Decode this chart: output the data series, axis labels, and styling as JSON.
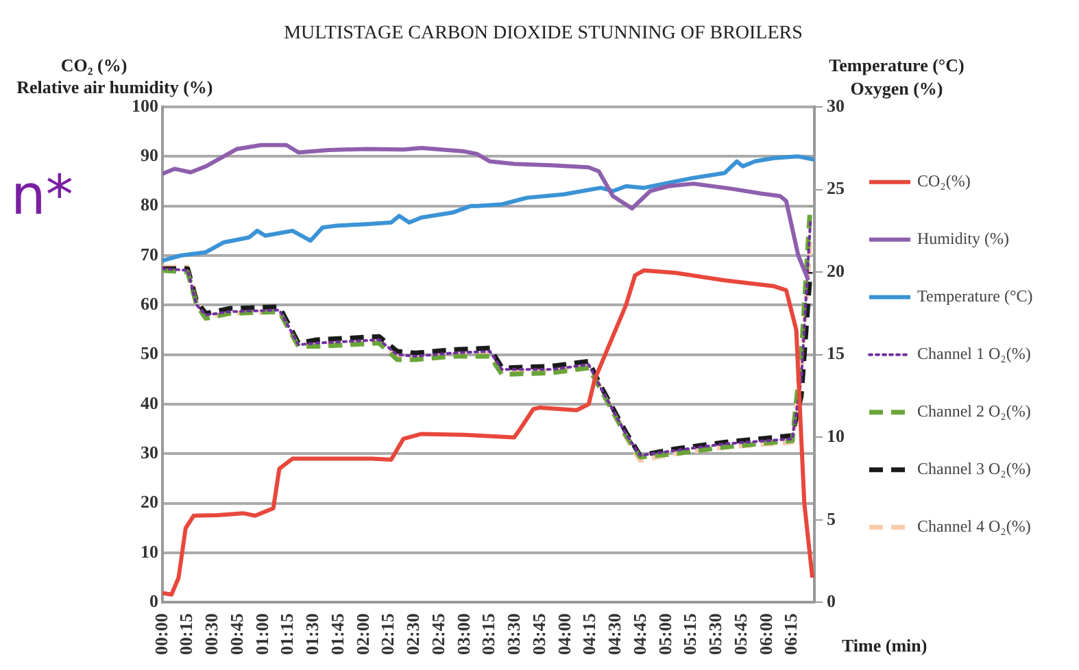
{
  "chart_data": {
    "type": "line",
    "title": "MULTISTAGE CARBON DIOXIDE STUNNING OF BROILERS",
    "xlabel": "Time (min)",
    "ylabel": "CO₂ (%)\nRelative air humidity (%)",
    "y2label": "Temperature (°C)\nOxygen (%)",
    "annotations": [
      "n*"
    ],
    "xlim": [
      0,
      6.47
    ],
    "xticks": [
      {
        "value": 0,
        "label": "00:00"
      },
      {
        "value": 0.25,
        "label": "00:15"
      },
      {
        "value": 0.5,
        "label": "00:30"
      },
      {
        "value": 0.75,
        "label": "00:45"
      },
      {
        "value": 1,
        "label": "01:00"
      },
      {
        "value": 1.25,
        "label": "01:15"
      },
      {
        "value": 1.5,
        "label": "01:30"
      },
      {
        "value": 1.75,
        "label": "01:45"
      },
      {
        "value": 2,
        "label": "02:00"
      },
      {
        "value": 2.25,
        "label": "02:15"
      },
      {
        "value": 2.5,
        "label": "02:30"
      },
      {
        "value": 2.75,
        "label": "02:45"
      },
      {
        "value": 3,
        "label": "03:00"
      },
      {
        "value": 3.25,
        "label": "03:15"
      },
      {
        "value": 3.5,
        "label": "03:30"
      },
      {
        "value": 3.75,
        "label": "03:45"
      },
      {
        "value": 4,
        "label": "04:00"
      },
      {
        "value": 4.25,
        "label": "04:15"
      },
      {
        "value": 4.5,
        "label": "04:30"
      },
      {
        "value": 4.75,
        "label": "04:45"
      },
      {
        "value": 5,
        "label": "05:00"
      },
      {
        "value": 5.25,
        "label": "05:15"
      },
      {
        "value": 5.5,
        "label": "05:30"
      },
      {
        "value": 5.75,
        "label": "05:45"
      },
      {
        "value": 6,
        "label": "06:00"
      },
      {
        "value": 6.25,
        "label": "06:15"
      }
    ],
    "ylim": [
      0,
      100
    ],
    "yticks": [
      0,
      10,
      20,
      30,
      40,
      50,
      60,
      70,
      80,
      90,
      100
    ],
    "y2lim": [
      0,
      30
    ],
    "y2ticks": [
      0,
      5,
      10,
      15,
      20,
      25,
      30
    ],
    "grid": "y",
    "legend": "right",
    "marker": "none",
    "series": [
      {
        "name": "CO₂(%)",
        "color": "#e8473c",
        "line_style": "solid",
        "x": [
          0,
          0.09,
          0.16,
          0.23,
          0.31,
          0.55,
          0.8,
          0.92,
          1.1,
          1.16,
          1.29,
          2.08,
          2.27,
          2.39,
          2.57,
          3.0,
          3.49,
          3.55,
          3.68,
          3.74,
          4.11,
          4.23,
          4.29,
          4.6,
          4.69,
          4.78,
          5.09,
          5.58,
          6.07,
          6.19,
          6.29,
          6.37,
          6.45
        ],
        "values": [
          1.9,
          1.6,
          5,
          15,
          17.5,
          17.6,
          18,
          17.5,
          19,
          27,
          29,
          29,
          28.8,
          33,
          34,
          33.8,
          33.3,
          35,
          39,
          39.3,
          38.8,
          40,
          45,
          60,
          66,
          67,
          66.5,
          65,
          63.8,
          63,
          55,
          20,
          5
        ]
      },
      {
        "name": "Humidity (%)",
        "color": "#8e5fad",
        "line_style": "solid",
        "x": [
          0,
          0.12,
          0.28,
          0.43,
          0.74,
          0.98,
          1.23,
          1.35,
          1.65,
          2.02,
          2.39,
          2.57,
          3.0,
          3.12,
          3.25,
          3.49,
          3.86,
          4.23,
          4.33,
          4.47,
          4.66,
          4.84,
          5.02,
          5.27,
          5.64,
          5.94,
          6.13,
          6.19,
          6.31,
          6.41
        ],
        "values": [
          86.5,
          87.5,
          86.8,
          88,
          91.5,
          92.3,
          92.3,
          90.8,
          91.3,
          91.5,
          91.4,
          91.7,
          91,
          90.5,
          89,
          88.5,
          88.2,
          87.8,
          87,
          82,
          79.5,
          83,
          84,
          84.5,
          83.5,
          82.5,
          82,
          81,
          70,
          65
        ]
      },
      {
        "name": "Temperature (°C)",
        "color": "#3b93d6",
        "line_style": "solid",
        "axis": "y2",
        "x": [
          0,
          0.18,
          0.43,
          0.61,
          0.86,
          0.94,
          1.02,
          1.29,
          1.47,
          1.59,
          1.72,
          2.02,
          2.27,
          2.35,
          2.45,
          2.57,
          2.88,
          3.06,
          3.12,
          3.37,
          3.62,
          3.98,
          4.35,
          4.47,
          4.6,
          4.78,
          5.02,
          5.27,
          5.58,
          5.7,
          5.76,
          5.88,
          6.07,
          6.31,
          6.47
        ],
        "values": [
          20.7,
          21.0,
          21.2,
          21.8,
          22.1,
          22.5,
          22.2,
          22.5,
          21.9,
          22.7,
          22.8,
          22.9,
          23.0,
          23.4,
          23.0,
          23.3,
          23.6,
          24.0,
          24.0,
          24.1,
          24.5,
          24.7,
          25.1,
          24.9,
          25.2,
          25.1,
          25.4,
          25.7,
          26.0,
          26.7,
          26.4,
          26.7,
          26.9,
          27.0,
          26.8
        ]
      },
      {
        "name": "Channel 1 O₂(%)",
        "color": "#7030a0",
        "line_style": "dotted",
        "axis": "y2",
        "x": [
          0,
          0.25,
          0.34,
          0.43,
          0.67,
          1.16,
          1.35,
          1.53,
          2.15,
          2.33,
          2.51,
          2.88,
          3.25,
          3.37,
          3.86,
          4.23,
          4.35,
          4.6,
          4.74,
          5.09,
          5.58,
          6.25,
          6.34,
          6.43
        ],
        "values": [
          20.2,
          20.1,
          18.0,
          17.4,
          17.6,
          17.7,
          15.6,
          15.7,
          15.9,
          15.0,
          14.9,
          15.1,
          15.2,
          14.1,
          14.1,
          14.4,
          13.0,
          10.2,
          8.9,
          9.2,
          9.6,
          9.9,
          13.5,
          23.0
        ]
      },
      {
        "name": "Channel 2 O₂(%)",
        "color": "#6aa53a",
        "line_style": "dashed",
        "axis": "y2",
        "x": [
          0,
          0.25,
          0.34,
          0.43,
          0.67,
          1.16,
          1.35,
          1.53,
          2.15,
          2.33,
          2.51,
          2.88,
          3.25,
          3.37,
          3.86,
          4.23,
          4.35,
          4.6,
          4.74,
          5.09,
          5.58,
          6.25,
          6.34,
          6.43
        ],
        "values": [
          20.1,
          20.0,
          18.0,
          17.2,
          17.5,
          17.6,
          15.5,
          15.5,
          15.7,
          14.7,
          14.7,
          14.9,
          14.9,
          13.8,
          13.9,
          14.2,
          12.9,
          10.1,
          8.8,
          9.0,
          9.4,
          9.8,
          15.0,
          24.0
        ]
      },
      {
        "name": "Channel 3 O₂(%)",
        "color": "#1a1a1a",
        "line_style": "dashed",
        "axis": "y2",
        "x": [
          0,
          0.25,
          0.34,
          0.43,
          0.67,
          1.16,
          1.35,
          1.53,
          2.15,
          2.33,
          2.51,
          2.88,
          3.25,
          3.37,
          3.86,
          4.23,
          4.35,
          4.6,
          4.74,
          5.09,
          5.58,
          6.25,
          6.34,
          6.43
        ],
        "values": [
          20.2,
          20.2,
          18.2,
          17.5,
          17.8,
          17.9,
          15.7,
          15.9,
          16.1,
          15.2,
          15.1,
          15.3,
          15.4,
          14.2,
          14.3,
          14.6,
          13.1,
          10.3,
          8.9,
          9.3,
          9.7,
          10.1,
          12.5,
          20.0
        ]
      },
      {
        "name": "Channel 4 O₂(%)",
        "color": "#f8cbad",
        "line_style": "dashed",
        "axis": "y2",
        "x": [
          0,
          0.25,
          0.34,
          0.43,
          0.67,
          1.16,
          1.35,
          1.53,
          2.15,
          2.33,
          2.51,
          2.88,
          3.25,
          3.37,
          3.86,
          4.23,
          4.35,
          4.6,
          4.74,
          5.09,
          5.58,
          6.25,
          6.34,
          6.43
        ],
        "values": [
          20.3,
          20.3,
          18.3,
          17.3,
          17.5,
          17.6,
          15.6,
          15.6,
          15.8,
          14.9,
          14.8,
          15.0,
          15.0,
          14.0,
          14.0,
          14.3,
          13.0,
          10.0,
          8.6,
          9.0,
          9.4,
          9.7,
          14.0,
          22.0
        ]
      }
    ]
  }
}
